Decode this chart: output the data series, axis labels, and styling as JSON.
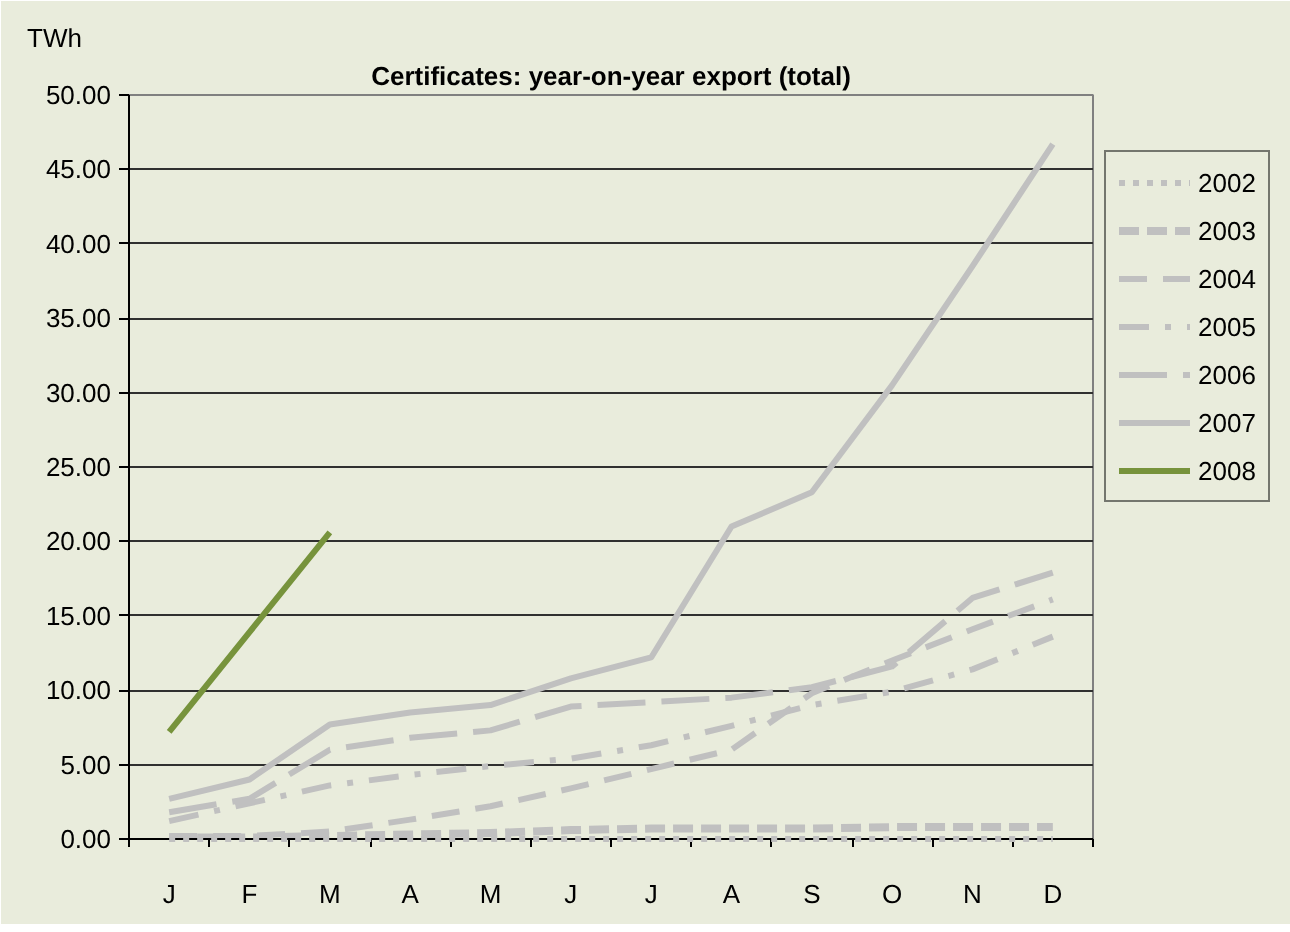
{
  "chart_data": {
    "type": "line",
    "title": "Certificates: year-on-year export (total)",
    "ylabel": "TWh",
    "categories": [
      "J",
      "F",
      "M",
      "A",
      "M",
      "J",
      "J",
      "A",
      "S",
      "O",
      "N",
      "D"
    ],
    "ylim": [
      0,
      50
    ],
    "yticks": [
      {
        "value": 0,
        "label": "0.00"
      },
      {
        "value": 5,
        "label": "5.00"
      },
      {
        "value": 10,
        "label": "10.00"
      },
      {
        "value": 15,
        "label": "15.00"
      },
      {
        "value": 20,
        "label": "20.00"
      },
      {
        "value": 25,
        "label": "25.00"
      },
      {
        "value": 30,
        "label": "30.00"
      },
      {
        "value": 35,
        "label": "35.00"
      },
      {
        "value": 40,
        "label": "40.00"
      },
      {
        "value": 45,
        "label": "45.00"
      },
      {
        "value": 50,
        "label": "50.00"
      }
    ],
    "grid": "y",
    "legend": "top right",
    "series": [
      {
        "name": "2002",
        "color": "#c0c0c0",
        "line_style": "dotted",
        "values": [
          0.0,
          0.0,
          0.0,
          0.0,
          0.0,
          0.0,
          0.0,
          0.0,
          0.0,
          0.0,
          0.0,
          0.0
        ]
      },
      {
        "name": "2003",
        "color": "#c0c0c0",
        "line_style": "short_dash",
        "values": [
          0.1,
          0.1,
          0.2,
          0.3,
          0.4,
          0.6,
          0.7,
          0.7,
          0.7,
          0.8,
          0.8,
          0.8
        ]
      },
      {
        "name": "2004",
        "color": "#c0c0c0",
        "line_style": "dashed",
        "values": [
          0.2,
          0.2,
          0.5,
          1.3,
          2.2,
          3.4,
          4.7,
          6.0,
          9.8,
          12.0,
          14.1,
          16.1
        ]
      },
      {
        "name": "2005",
        "color": "#c0c0c0",
        "line_style": "dash_dot",
        "values": [
          1.2,
          2.4,
          3.6,
          4.3,
          4.9,
          5.4,
          6.3,
          7.6,
          9.0,
          9.9,
          11.4,
          13.6
        ]
      },
      {
        "name": "2006",
        "color": "#c0c0c0",
        "line_style": "long_dash",
        "values": [
          1.8,
          2.7,
          6.0,
          6.8,
          7.3,
          8.9,
          9.2,
          9.5,
          10.2,
          11.6,
          16.2,
          17.9
        ]
      },
      {
        "name": "2007",
        "color": "#c0c0c0",
        "line_style": "solid",
        "values": [
          2.7,
          4.0,
          7.7,
          8.5,
          9.0,
          10.8,
          12.2,
          21.0,
          23.3,
          30.5,
          38.5,
          46.7
        ]
      },
      {
        "name": "2008",
        "color": "#77933c",
        "line_style": "solid",
        "values": [
          7.2,
          13.9,
          20.6,
          null,
          null,
          null,
          null,
          null,
          null,
          null,
          null,
          null
        ]
      }
    ]
  }
}
